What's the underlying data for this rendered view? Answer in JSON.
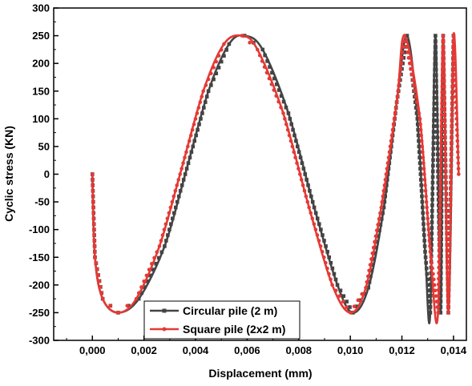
{
  "chart_data": {
    "type": "line",
    "title": "",
    "xlabel": "Displacement (mm)",
    "ylabel": "Cyclic stress (KN)",
    "xlim": [
      -0.0015,
      0.0145
    ],
    "ylim": [
      -300,
      300
    ],
    "xticks": [
      0.0,
      0.002,
      0.004,
      0.006,
      0.008,
      0.01,
      0.012,
      0.014
    ],
    "xtick_labels": [
      "0,000",
      "0,002",
      "0,004",
      "0,006",
      "0,008",
      "0,010",
      "0,012",
      "0,014"
    ],
    "yticks": [
      -300,
      -250,
      -200,
      -150,
      -100,
      -50,
      0,
      50,
      100,
      150,
      200,
      250,
      300
    ],
    "ytick_labels": [
      "-300",
      "-250",
      "-200",
      "-150",
      "-100",
      "-50",
      "0",
      "50",
      "100",
      "150",
      "200",
      "250",
      "300"
    ],
    "grid": false,
    "legend_position": "bottom-center",
    "series": [
      {
        "name": "Circular pile (2 m)",
        "color": "#444444",
        "marker": "square",
        "points": [
          [
            0.0,
            0
          ],
          [
            0.0001,
            -150
          ],
          [
            0.0004,
            -225
          ],
          [
            0.001,
            -250
          ],
          [
            0.0018,
            -225
          ],
          [
            0.0028,
            -130
          ],
          [
            0.0036,
            0
          ],
          [
            0.0045,
            150
          ],
          [
            0.0053,
            235
          ],
          [
            0.0059,
            250
          ],
          [
            0.0066,
            225
          ],
          [
            0.0076,
            110
          ],
          [
            0.0086,
            -60
          ],
          [
            0.0095,
            -200
          ],
          [
            0.0101,
            -250
          ],
          [
            0.0107,
            -205
          ],
          [
            0.0113,
            -60
          ],
          [
            0.0118,
            130
          ],
          [
            0.0122,
            250
          ],
          [
            0.0126,
            100
          ],
          [
            0.0129,
            -140
          ],
          [
            0.0131,
            -250
          ],
          [
            0.0133,
            250
          ],
          [
            0.0135,
            -250
          ],
          [
            0.0136,
            250
          ],
          [
            0.0138,
            -250
          ],
          [
            0.014,
            250
          ]
        ]
      },
      {
        "name": "Square pile (2x2 m)",
        "color": "#e53935",
        "marker": "circle",
        "points": [
          [
            0.0,
            0
          ],
          [
            0.0001,
            -150
          ],
          [
            0.0004,
            -225
          ],
          [
            0.001,
            -250
          ],
          [
            0.0017,
            -225
          ],
          [
            0.0026,
            -130
          ],
          [
            0.0034,
            0
          ],
          [
            0.0043,
            150
          ],
          [
            0.0051,
            235
          ],
          [
            0.0058,
            250
          ],
          [
            0.0064,
            225
          ],
          [
            0.0074,
            110
          ],
          [
            0.0084,
            -60
          ],
          [
            0.0093,
            -200
          ],
          [
            0.01,
            -250
          ],
          [
            0.0106,
            -205
          ],
          [
            0.0112,
            -60
          ],
          [
            0.0118,
            130
          ],
          [
            0.0121,
            250
          ],
          [
            0.0127,
            100
          ],
          [
            0.0131,
            -140
          ],
          [
            0.0134,
            -250
          ],
          [
            0.0136,
            250
          ],
          [
            0.0138,
            -250
          ],
          [
            0.014,
            250
          ],
          [
            0.0142,
            0
          ]
        ]
      }
    ]
  }
}
